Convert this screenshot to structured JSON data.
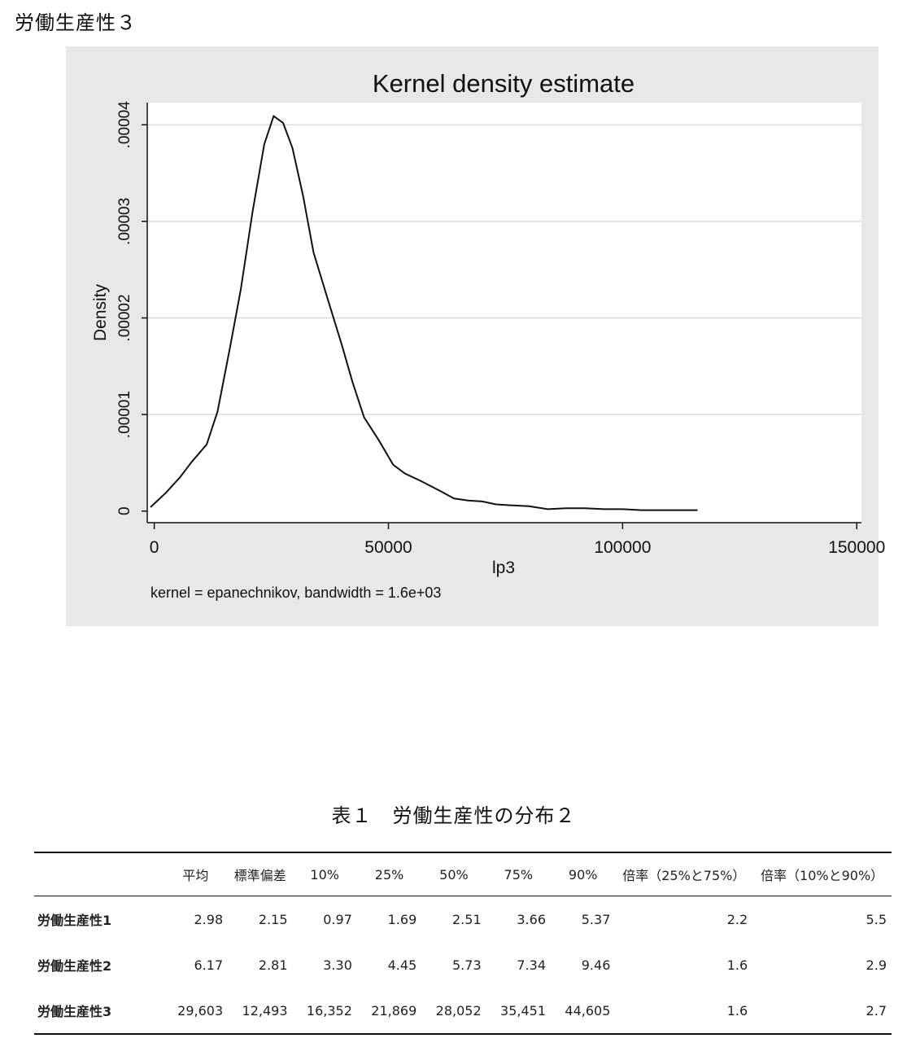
{
  "page": {
    "heading": "労働生産性３"
  },
  "chart_data": {
    "type": "line",
    "title": "Kernel density estimate",
    "xlabel": "lp3",
    "ylabel": "Density",
    "note": "kernel = epanechnikov, bandwidth =  1.6e+03",
    "xlim": [
      -1500,
      151000
    ],
    "ylim": [
      -1.2e-06,
      4.23e-05
    ],
    "xticks": [
      0,
      50000,
      100000,
      150000
    ],
    "xtick_labels": [
      "0",
      "50000",
      "100000",
      "150000"
    ],
    "yticks": [
      0,
      1e-05,
      2e-05,
      3e-05,
      4e-05
    ],
    "ytick_labels": [
      "0",
      ".00001",
      ".00002",
      ".00003",
      ".00004"
    ],
    "grid": true,
    "series": [
      {
        "x": [
          -800,
          2500,
          5500,
          8000,
          11200,
          13500,
          16200,
          18500,
          21000,
          23500,
          25500,
          27500,
          29500,
          31800,
          34000,
          37000,
          40000,
          42300,
          44800,
          48000,
          51000,
          53500,
          57000,
          61000,
          64000,
          67000,
          70000,
          73000,
          76000,
          80000,
          84000,
          88000,
          92000,
          96000,
          100000,
          104000,
          110000,
          116000
        ],
        "y": [
          4e-07,
          1.9e-06,
          3.5e-06,
          5.1e-06,
          6.9e-06,
          1.03e-05,
          1.7e-05,
          2.3e-05,
          3.1e-05,
          3.8e-05,
          4.09e-05,
          4.02e-05,
          3.76e-05,
          3.26e-05,
          2.68e-05,
          2.2e-05,
          1.73e-05,
          1.34e-05,
          9.7e-06,
          7.3e-06,
          4.8e-06,
          3.9e-06,
          3.1e-06,
          2.1e-06,
          1.3e-06,
          1.1e-06,
          1e-06,
          7e-07,
          6e-07,
          5e-07,
          2e-07,
          3e-07,
          3e-07,
          2e-07,
          2e-07,
          1e-07,
          1e-07,
          1e-07
        ]
      }
    ]
  },
  "table": {
    "title": "表１　労働生産性の分布２",
    "headers": [
      "",
      "平均",
      "標準偏差",
      "10%",
      "25%",
      "50%",
      "75%",
      "90%",
      "倍率（25%と75%）",
      "倍率（10%と90%）"
    ],
    "rows": [
      [
        "労働生産性1",
        "2.98",
        "2.15",
        "0.97",
        "1.69",
        "2.51",
        "3.66",
        "5.37",
        "2.2",
        "5.5"
      ],
      [
        "労働生産性2",
        "6.17",
        "2.81",
        "3.30",
        "4.45",
        "5.73",
        "7.34",
        "9.46",
        "1.6",
        "2.9"
      ],
      [
        "労働生産性3",
        "29,603",
        "12,493",
        "16,352",
        "21,869",
        "28,052",
        "35,451",
        "44,605",
        "1.6",
        "2.7"
      ]
    ]
  }
}
